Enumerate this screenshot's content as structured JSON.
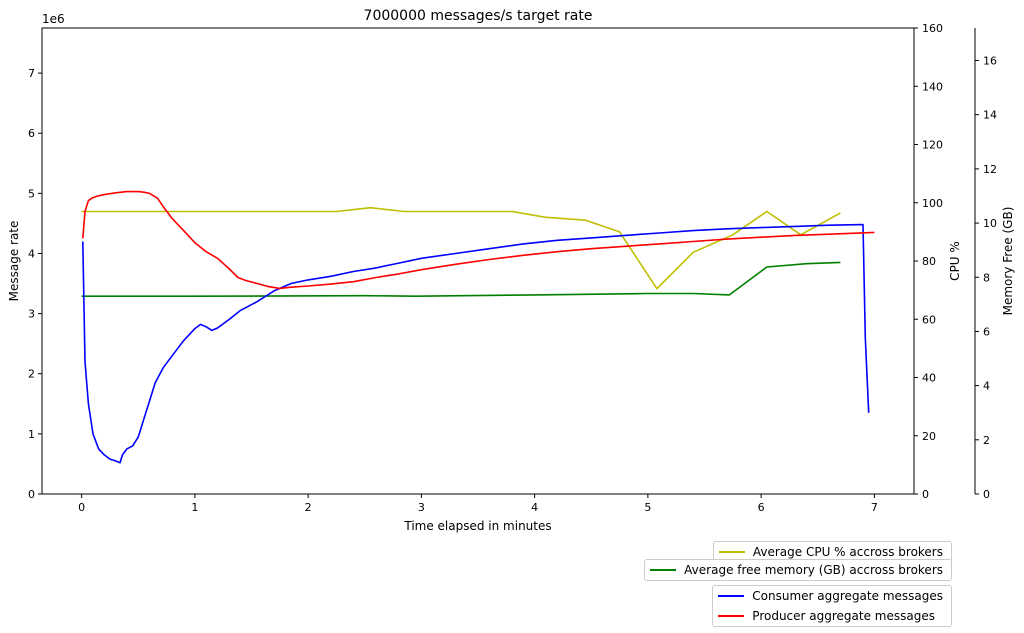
{
  "chart_data": {
    "type": "line",
    "title": "7000000 messages/s target rate",
    "xlabel": "Time elapsed in minutes",
    "xlim": [
      -0.35,
      7.35
    ],
    "xticks": [
      0,
      1,
      2,
      3,
      4,
      5,
      6,
      7
    ],
    "axes": {
      "rate": {
        "label": "Message rate",
        "multiplier": "1e6",
        "ylim": [
          0,
          7.75
        ],
        "ticks": [
          0,
          1,
          2,
          3,
          4,
          5,
          6,
          7
        ]
      },
      "cpu": {
        "label": "CPU %",
        "ylim": [
          0,
          160
        ],
        "ticks": [
          0,
          20,
          40,
          60,
          80,
          100,
          120,
          140,
          160
        ]
      },
      "memory": {
        "label": "Memory Free (GB)",
        "ylim": [
          0,
          17.2
        ],
        "ticks": [
          0,
          2,
          4,
          6,
          8,
          10,
          12,
          14,
          16
        ]
      }
    },
    "series": [
      {
        "name": "Average CPU % accross brokers",
        "axis": "cpu",
        "color": "#bfbf00",
        "points": [
          [
            0,
            97
          ],
          [
            1,
            97
          ],
          [
            2.25,
            97
          ],
          [
            2.55,
            98.3
          ],
          [
            2.85,
            97
          ],
          [
            3.8,
            97
          ],
          [
            4.1,
            95
          ],
          [
            4.45,
            94
          ],
          [
            4.75,
            90
          ],
          [
            5.08,
            70.5
          ],
          [
            5.4,
            83
          ],
          [
            5.75,
            89
          ],
          [
            6.05,
            97
          ],
          [
            6.35,
            89
          ],
          [
            6.7,
            96.5
          ]
        ]
      },
      {
        "name": "Average free memory (GB) accross brokers",
        "axis": "memory",
        "color": "#008000",
        "points": [
          [
            0,
            7.3
          ],
          [
            1,
            7.3
          ],
          [
            2.5,
            7.32
          ],
          [
            2.95,
            7.3
          ],
          [
            4,
            7.35
          ],
          [
            5,
            7.4
          ],
          [
            5.4,
            7.4
          ],
          [
            5.72,
            7.35
          ],
          [
            6.05,
            8.38
          ],
          [
            6.4,
            8.5
          ],
          [
            6.7,
            8.55
          ]
        ]
      },
      {
        "name": "Consumer aggregate messages",
        "axis": "rate",
        "color": "#0000ff",
        "points": [
          [
            0.01,
            4.2
          ],
          [
            0.03,
            2.2
          ],
          [
            0.06,
            1.5
          ],
          [
            0.1,
            1.0
          ],
          [
            0.15,
            0.75
          ],
          [
            0.2,
            0.65
          ],
          [
            0.25,
            0.58
          ],
          [
            0.3,
            0.55
          ],
          [
            0.34,
            0.52
          ],
          [
            0.36,
            0.65
          ],
          [
            0.4,
            0.75
          ],
          [
            0.45,
            0.8
          ],
          [
            0.5,
            0.95
          ],
          [
            0.55,
            1.25
          ],
          [
            0.6,
            1.55
          ],
          [
            0.65,
            1.85
          ],
          [
            0.72,
            2.1
          ],
          [
            0.8,
            2.3
          ],
          [
            0.9,
            2.55
          ],
          [
            1.0,
            2.75
          ],
          [
            1.05,
            2.82
          ],
          [
            1.1,
            2.78
          ],
          [
            1.15,
            2.72
          ],
          [
            1.2,
            2.76
          ],
          [
            1.3,
            2.9
          ],
          [
            1.4,
            3.05
          ],
          [
            1.55,
            3.2
          ],
          [
            1.7,
            3.38
          ],
          [
            1.85,
            3.5
          ],
          [
            2.0,
            3.56
          ],
          [
            2.2,
            3.62
          ],
          [
            2.4,
            3.7
          ],
          [
            2.6,
            3.76
          ],
          [
            2.8,
            3.84
          ],
          [
            3.0,
            3.92
          ],
          [
            3.3,
            4.0
          ],
          [
            3.6,
            4.08
          ],
          [
            3.9,
            4.16
          ],
          [
            4.2,
            4.22
          ],
          [
            4.5,
            4.26
          ],
          [
            4.8,
            4.3
          ],
          [
            5.1,
            4.34
          ],
          [
            5.4,
            4.38
          ],
          [
            5.7,
            4.41
          ],
          [
            6.0,
            4.43
          ],
          [
            6.3,
            4.45
          ],
          [
            6.6,
            4.47
          ],
          [
            6.9,
            4.48
          ],
          [
            6.92,
            2.6
          ],
          [
            6.95,
            1.35
          ]
        ]
      },
      {
        "name": "Producer aggregate messages",
        "axis": "rate",
        "color": "#ff0000",
        "points": [
          [
            0.01,
            4.25
          ],
          [
            0.03,
            4.7
          ],
          [
            0.06,
            4.88
          ],
          [
            0.1,
            4.93
          ],
          [
            0.15,
            4.96
          ],
          [
            0.2,
            4.98
          ],
          [
            0.3,
            5.01
          ],
          [
            0.4,
            5.03
          ],
          [
            0.5,
            5.03
          ],
          [
            0.55,
            5.02
          ],
          [
            0.6,
            5.0
          ],
          [
            0.67,
            4.92
          ],
          [
            0.72,
            4.78
          ],
          [
            0.8,
            4.58
          ],
          [
            0.9,
            4.38
          ],
          [
            1.0,
            4.18
          ],
          [
            1.1,
            4.03
          ],
          [
            1.2,
            3.92
          ],
          [
            1.3,
            3.75
          ],
          [
            1.38,
            3.6
          ],
          [
            1.45,
            3.55
          ],
          [
            1.55,
            3.5
          ],
          [
            1.65,
            3.45
          ],
          [
            1.75,
            3.42
          ],
          [
            1.85,
            3.44
          ],
          [
            2.0,
            3.46
          ],
          [
            2.2,
            3.49
          ],
          [
            2.4,
            3.53
          ],
          [
            2.6,
            3.6
          ],
          [
            2.8,
            3.66
          ],
          [
            3.0,
            3.73
          ],
          [
            3.3,
            3.82
          ],
          [
            3.6,
            3.9
          ],
          [
            3.9,
            3.97
          ],
          [
            4.2,
            4.03
          ],
          [
            4.5,
            4.08
          ],
          [
            4.8,
            4.12
          ],
          [
            5.1,
            4.16
          ],
          [
            5.4,
            4.2
          ],
          [
            5.7,
            4.24
          ],
          [
            6.0,
            4.27
          ],
          [
            6.3,
            4.3
          ],
          [
            6.6,
            4.32
          ],
          [
            7.0,
            4.35
          ]
        ]
      }
    ],
    "legends": [
      {
        "placement": "below-right",
        "entries": [
          "Average CPU % accross brokers"
        ]
      },
      {
        "placement": "below-right",
        "entries": [
          "Average free memory (GB) accross brokers"
        ]
      },
      {
        "placement": "bottom-right",
        "entries": [
          "Consumer aggregate messages",
          "Producer aggregate messages"
        ]
      }
    ]
  }
}
